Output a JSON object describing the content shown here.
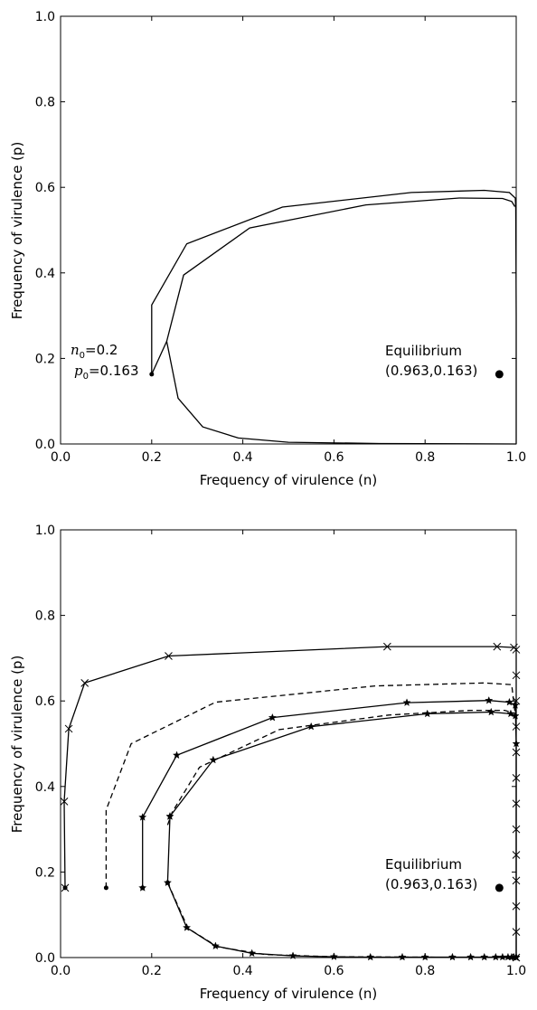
{
  "chart_data": [
    {
      "type": "line",
      "xlabel": "Frequency of virulence (n)",
      "ylabel": "Frequency of virulence (p)",
      "xlim": [
        0.0,
        1.0
      ],
      "ylim": [
        0.0,
        1.0
      ],
      "xticks": [
        "0.0",
        "0.2",
        "0.4",
        "0.6",
        "0.8",
        "1.0"
      ],
      "yticks": [
        "0.0",
        "0.2",
        "0.4",
        "0.6",
        "0.8",
        "1.0"
      ],
      "grid": false,
      "series": [
        {
          "style": "solid",
          "marker": "none",
          "points": [
            [
              0.2,
              0.163
            ],
            [
              0.2,
              0.325
            ],
            [
              0.277,
              0.468
            ],
            [
              0.487,
              0.554
            ],
            [
              0.77,
              0.588
            ],
            [
              0.93,
              0.593
            ],
            [
              0.985,
              0.588
            ],
            [
              0.998,
              0.575
            ],
            [
              0.999,
              0.55
            ],
            [
              1.0,
              0.3
            ],
            [
              1.0,
              0.0
            ]
          ]
        },
        {
          "style": "solid",
          "marker": "none",
          "points": [
            [
              0.2,
              0.163
            ],
            [
              0.233,
              0.24
            ],
            [
              0.27,
              0.395
            ],
            [
              0.415,
              0.505
            ],
            [
              0.67,
              0.559
            ],
            [
              0.875,
              0.575
            ],
            [
              0.97,
              0.574
            ],
            [
              0.99,
              0.567
            ],
            [
              0.997,
              0.555
            ]
          ]
        },
        {
          "style": "solid",
          "marker": "none",
          "points": [
            [
              0.233,
              0.24
            ],
            [
              0.258,
              0.107
            ],
            [
              0.312,
              0.04
            ],
            [
              0.39,
              0.014
            ],
            [
              0.5,
              0.004
            ],
            [
              0.7,
              0.001
            ],
            [
              1.0,
              0.0
            ]
          ]
        }
      ],
      "start_marker": [
        0.2,
        0.163
      ],
      "equilibrium_marker": [
        0.963,
        0.163
      ],
      "annotations": {
        "n0_symbol": "n",
        "n0_sub": "0",
        "n0_value": "=0.2",
        "p0_symbol": "p",
        "p0_sub": "0",
        "p0_value": "=0.163",
        "equilibrium_title": "Equilibrium",
        "equilibrium_coords": "(0.963,0.163)"
      }
    },
    {
      "type": "line",
      "xlabel": "Frequency of virulence (n)",
      "ylabel": "Frequency of virulence (p)",
      "xlim": [
        0.0,
        1.0
      ],
      "ylim": [
        0.0,
        1.0
      ],
      "xticks": [
        "0.0",
        "0.2",
        "0.4",
        "0.6",
        "0.8",
        "1.0"
      ],
      "yticks": [
        "0.0",
        "0.2",
        "0.4",
        "0.6",
        "0.8",
        "1.0"
      ],
      "grid": false,
      "series": [
        {
          "style": "solid",
          "marker": "x",
          "points": [
            [
              0.01,
              0.163
            ],
            [
              0.008,
              0.365
            ],
            [
              0.018,
              0.535
            ],
            [
              0.053,
              0.642
            ],
            [
              0.237,
              0.705
            ],
            [
              0.717,
              0.727
            ],
            [
              0.958,
              0.727
            ],
            [
              0.995,
              0.725
            ],
            [
              1.0,
              0.72
            ],
            [
              1.0,
              0.66
            ],
            [
              1.0,
              0.6
            ],
            [
              1.0,
              0.54
            ],
            [
              1.0,
              0.48
            ],
            [
              1.0,
              0.42
            ],
            [
              1.0,
              0.36
            ],
            [
              1.0,
              0.3
            ],
            [
              1.0,
              0.24
            ],
            [
              1.0,
              0.18
            ],
            [
              1.0,
              0.12
            ],
            [
              1.0,
              0.06
            ],
            [
              1.0,
              0.0
            ]
          ]
        },
        {
          "style": "dashed",
          "marker": "none",
          "points": [
            [
              0.1,
              0.163
            ],
            [
              0.1,
              0.345
            ],
            [
              0.155,
              0.5
            ],
            [
              0.34,
              0.597
            ],
            [
              0.69,
              0.635
            ],
            [
              0.93,
              0.642
            ],
            [
              0.99,
              0.638
            ],
            [
              1.0,
              0.55
            ]
          ]
        },
        {
          "style": "solid",
          "marker": "star",
          "points": [
            [
              0.18,
              0.163
            ],
            [
              0.18,
              0.328
            ],
            [
              0.255,
              0.473
            ],
            [
              0.465,
              0.561
            ],
            [
              0.76,
              0.596
            ],
            [
              0.94,
              0.601
            ],
            [
              0.985,
              0.597
            ],
            [
              0.998,
              0.59
            ],
            [
              1.0,
              0.5
            ],
            [
              1.0,
              0.0
            ]
          ]
        },
        {
          "style": "dashed",
          "marker": "none",
          "points": [
            [
              0.235,
              0.31
            ],
            [
              0.245,
              0.34
            ],
            [
              0.305,
              0.445
            ],
            [
              0.48,
              0.533
            ],
            [
              0.72,
              0.567
            ],
            [
              0.9,
              0.578
            ],
            [
              0.975,
              0.578
            ],
            [
              0.998,
              0.57
            ]
          ]
        },
        {
          "style": "solid",
          "marker": "star",
          "points": [
            [
              0.24,
              0.33
            ],
            [
              0.335,
              0.462
            ],
            [
              0.55,
              0.54
            ],
            [
              0.805,
              0.57
            ],
            [
              0.945,
              0.574
            ],
            [
              0.988,
              0.57
            ],
            [
              0.998,
              0.565
            ]
          ]
        },
        {
          "style": "solid",
          "marker": "star",
          "points": [
            [
              0.24,
              0.33
            ],
            [
              0.235,
              0.175
            ],
            [
              0.277,
              0.07
            ],
            [
              0.34,
              0.027
            ],
            [
              0.42,
              0.01
            ],
            [
              0.51,
              0.004
            ],
            [
              0.6,
              0.002
            ],
            [
              0.68,
              0.001
            ],
            [
              0.75,
              0.001
            ],
            [
              0.8,
              0.001
            ],
            [
              0.86,
              0.001
            ],
            [
              0.9,
              0.001
            ],
            [
              0.93,
              0.001
            ],
            [
              0.955,
              0.001
            ],
            [
              0.97,
              0.001
            ],
            [
              0.982,
              0.001
            ],
            [
              0.99,
              0.001
            ],
            [
              0.995,
              0.001
            ],
            [
              1.0,
              0.001
            ]
          ]
        },
        {
          "style": "dashed",
          "marker": "none",
          "points": [
            [
              0.235,
              0.175
            ],
            [
              0.28,
              0.068
            ],
            [
              0.345,
              0.025
            ],
            [
              0.45,
              0.007
            ],
            [
              0.6,
              0.002
            ],
            [
              1.0,
              0.0
            ]
          ]
        }
      ],
      "start_markers": [
        [
          0.01,
          0.163
        ],
        [
          0.1,
          0.163
        ],
        [
          0.18,
          0.163
        ],
        [
          0.235,
          0.175
        ]
      ],
      "equilibrium_marker": [
        0.963,
        0.163
      ],
      "annotations": {
        "equilibrium_title": "Equilibrium",
        "equilibrium_coords": "(0.963,0.163)"
      }
    }
  ]
}
